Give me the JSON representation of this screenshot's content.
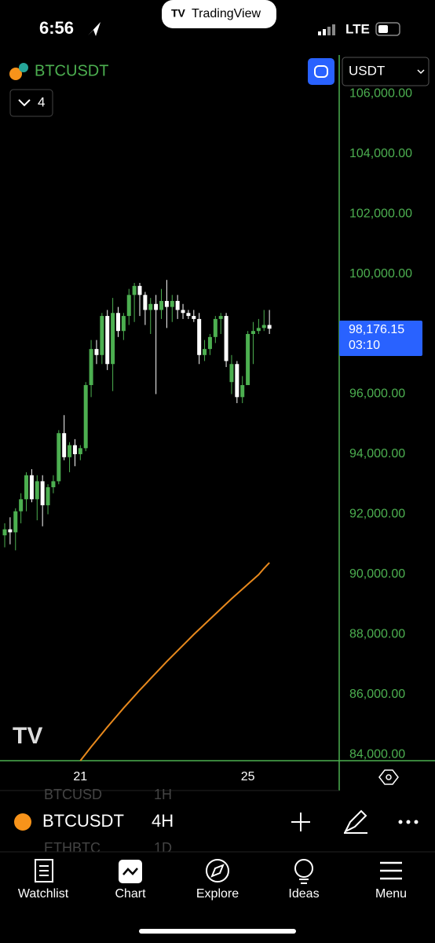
{
  "status_bar": {
    "time": "6:56",
    "network": "LTE"
  },
  "app_pill": "TradingView",
  "header": {
    "symbol": "BTCUSDT",
    "indicator_count": "4",
    "currency": "USDT"
  },
  "chart_data": {
    "type": "candlestick",
    "categories": [
      null,
      null,
      null,
      null,
      null,
      null,
      null,
      null,
      null,
      null,
      null,
      null,
      null,
      null,
      "21",
      null,
      null,
      null,
      null,
      null,
      null,
      null,
      null,
      null,
      null,
      null,
      null,
      null,
      null,
      null,
      null,
      null,
      null,
      null,
      null,
      null,
      null,
      null,
      null,
      null,
      null,
      null,
      null,
      null,
      null,
      "25",
      null,
      null,
      null,
      null
    ],
    "open": [
      91300,
      91500,
      91400,
      92100,
      92500,
      93300,
      92500,
      93100,
      92300,
      92900,
      93100,
      94700,
      93900,
      94300,
      94000,
      94200,
      96300,
      97500,
      97300,
      98600,
      97000,
      98700,
      98100,
      98600,
      99300,
      99600,
      99300,
      98800,
      99000,
      98800,
      99100,
      98900,
      99100,
      98800,
      98700,
      98600,
      98500,
      97300,
      97500,
      97900,
      98500,
      98600,
      96400,
      97000,
      95900,
      96300,
      98000,
      98100,
      98200,
      98300
    ],
    "high": [
      91700,
      91900,
      92200,
      92700,
      93400,
      93500,
      93300,
      93300,
      93000,
      93300,
      94800,
      95300,
      94400,
      94500,
      94300,
      96400,
      97800,
      97800,
      98700,
      98800,
      99200,
      98900,
      98700,
      99500,
      99700,
      99700,
      99400,
      99200,
      99300,
      99500,
      99800,
      99300,
      99300,
      99000,
      98800,
      98800,
      98700,
      97800,
      98000,
      98600,
      98700,
      98700,
      97300,
      97100,
      96600,
      98100,
      98400,
      98500,
      98800,
      98800
    ],
    "low": [
      90900,
      91000,
      90800,
      91700,
      92100,
      92400,
      91800,
      91600,
      92000,
      92700,
      93000,
      93800,
      93400,
      93600,
      93800,
      94100,
      95900,
      97000,
      97000,
      96800,
      96100,
      97900,
      97800,
      98300,
      98400,
      98600,
      98300,
      98000,
      96000,
      98500,
      98200,
      98400,
      98500,
      98500,
      98500,
      98400,
      97000,
      97100,
      97300,
      97700,
      98000,
      96900,
      96000,
      95700,
      95700,
      96300,
      97000,
      98000,
      98100,
      98000
    ],
    "close": [
      91500,
      91400,
      92100,
      92500,
      93300,
      92500,
      93100,
      92300,
      92900,
      93100,
      94700,
      93900,
      94300,
      94000,
      94200,
      96300,
      97500,
      97300,
      98600,
      97000,
      98700,
      98100,
      98600,
      99300,
      99600,
      99300,
      98800,
      99000,
      98800,
      99100,
      98900,
      99100,
      98800,
      98700,
      98600,
      98500,
      97300,
      97500,
      97900,
      98500,
      98600,
      97100,
      97000,
      95900,
      96300,
      98000,
      98100,
      98200,
      98300,
      98176.15
    ],
    "up_color": "#4caf50",
    "down_color": "#ffffff",
    "ma": [
      null,
      null,
      null,
      null,
      null,
      null,
      null,
      null,
      null,
      null,
      null,
      null,
      null,
      null,
      83800,
      84030,
      84260,
      84480,
      84700,
      84920,
      85130,
      85340,
      85550,
      85750,
      85950,
      86150,
      86340,
      86530,
      86720,
      86910,
      87100,
      87280,
      87460,
      87640,
      87820,
      88000,
      88170,
      88340,
      88510,
      88680,
      88850,
      89020,
      89190,
      89350,
      89510,
      89670,
      89830,
      89990,
      90200,
      90390
    ],
    "ma_color": "#e8891d",
    "ylim": [
      83800,
      106500
    ],
    "yticks": [
      {
        "value": 106000,
        "label": "106,000.00"
      },
      {
        "value": 104000,
        "label": "104,000.00"
      },
      {
        "value": 102000,
        "label": "102,000.00"
      },
      {
        "value": 100000,
        "label": "100,000.00"
      },
      {
        "value": 98000,
        "label": "98,000.00"
      },
      {
        "value": 96000,
        "label": "96,000.00"
      },
      {
        "value": 94000,
        "label": "94,000.00"
      },
      {
        "value": 92000,
        "label": "92,000.00"
      },
      {
        "value": 90000,
        "label": "90,000.00"
      },
      {
        "value": 88000,
        "label": "88,000.00"
      },
      {
        "value": 86000,
        "label": "86,000.00"
      },
      {
        "value": 84000,
        "label": "84,000.00"
      }
    ],
    "price_label": "98,176.15",
    "countdown": "03:10"
  },
  "symbol_list": [
    {
      "symbol": "BTCUSD",
      "interval": "1H"
    },
    {
      "symbol": "BTCUSDT",
      "interval": "4H"
    },
    {
      "symbol": "ETHBTC",
      "interval": "1D"
    }
  ],
  "nav": [
    "Watchlist",
    "Chart",
    "Explore",
    "Ideas",
    "Menu"
  ]
}
